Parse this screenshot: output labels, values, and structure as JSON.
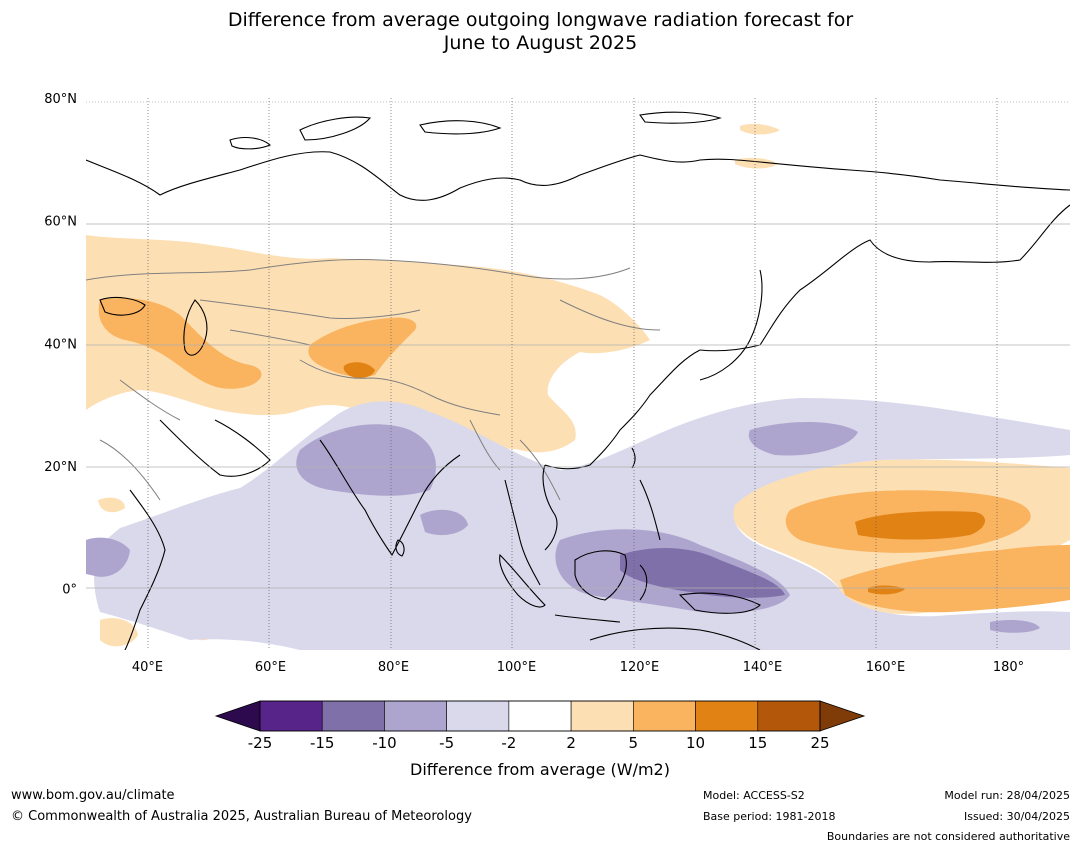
{
  "title_line1": "Difference from average outgoing longwave radiation forecast for",
  "title_line2": "June to August 2025",
  "map": {
    "lon_range": [
      30,
      190
    ],
    "lat_range": [
      -10,
      80
    ],
    "lat_ticks": [
      {
        "value": 80,
        "label": "80°N"
      },
      {
        "value": 60,
        "label": "60°N"
      },
      {
        "value": 40,
        "label": "40°N"
      },
      {
        "value": 20,
        "label": "20°N"
      },
      {
        "value": 0,
        "label": "0°"
      }
    ],
    "lon_ticks": [
      {
        "value": 40,
        "label": "40°E"
      },
      {
        "value": 60,
        "label": "60°E"
      },
      {
        "value": 80,
        "label": "80°E"
      },
      {
        "value": 100,
        "label": "100°E"
      },
      {
        "value": 120,
        "label": "120°E"
      },
      {
        "value": 140,
        "label": "140°E"
      },
      {
        "value": 160,
        "label": "160°E"
      },
      {
        "value": 180,
        "label": "180°"
      }
    ]
  },
  "colorbar": {
    "label": "Difference from average (W/m2)",
    "ticks": [
      "-25",
      "-15",
      "-10",
      "-5",
      "-2",
      "2",
      "5",
      "10",
      "15",
      "25"
    ],
    "colors": [
      "#57248a",
      "#8070aa",
      "#aea5cf",
      "#d9d9eb",
      "#ffffff",
      "#fddfb4",
      "#fab35e",
      "#e08214",
      "#b3580b"
    ],
    "extend_low_color": "#2d0a4e",
    "extend_high_color": "#7f3b08"
  },
  "footer": {
    "website": "www.bom.gov.au/climate",
    "copyright": "© Commonwealth of Australia 2025, Australian Bureau of Meteorology",
    "model": "Model: ACCESS-S2",
    "base_period": "Base period: 1981-2018",
    "model_run": "Model run: 28/04/2025",
    "issued": "Issued: 30/04/2025",
    "disclaimer": "Boundaries are not considered authoritative"
  }
}
